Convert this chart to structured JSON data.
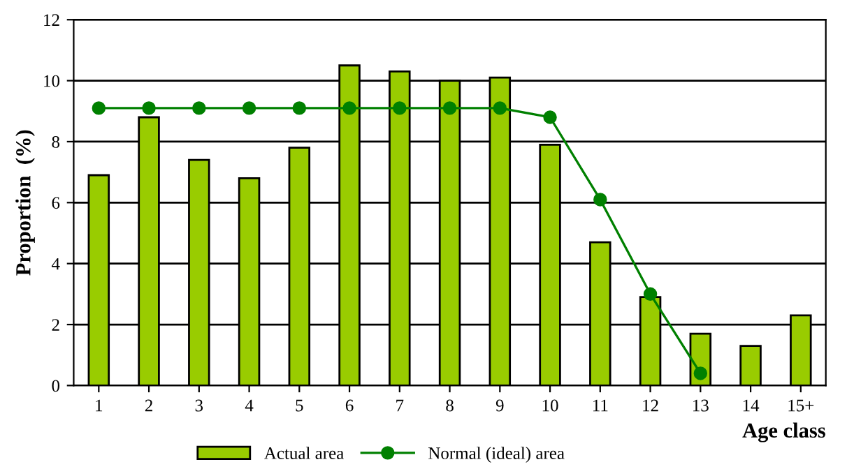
{
  "chart_data": {
    "type": "bar",
    "xlabel": "Age class",
    "ylabel": "Proportion  (%)",
    "categories": [
      "1",
      "2",
      "3",
      "4",
      "5",
      "6",
      "7",
      "8",
      "9",
      "10",
      "11",
      "12",
      "13",
      "14",
      "15+"
    ],
    "series": [
      {
        "name": "Actual area",
        "color": "#99cc00",
        "values": [
          6.9,
          8.8,
          7.4,
          6.8,
          7.8,
          10.5,
          10.3,
          10.0,
          10.1,
          7.9,
          4.7,
          2.9,
          1.7,
          1.3,
          2.3
        ]
      },
      {
        "name": "Normal (ideal) area",
        "type": "line",
        "color": "#008000",
        "marker": "circle",
        "line_style": "solid",
        "values": [
          9.1,
          9.1,
          9.1,
          9.1,
          9.1,
          9.1,
          9.1,
          9.1,
          9.1,
          8.8,
          6.1,
          3.0,
          0.4,
          null,
          null
        ]
      }
    ],
    "ylim": [
      0,
      12
    ],
    "yticks": [
      0,
      2,
      4,
      6,
      8,
      10,
      12
    ],
    "grid": "y",
    "legend": "bottom"
  }
}
